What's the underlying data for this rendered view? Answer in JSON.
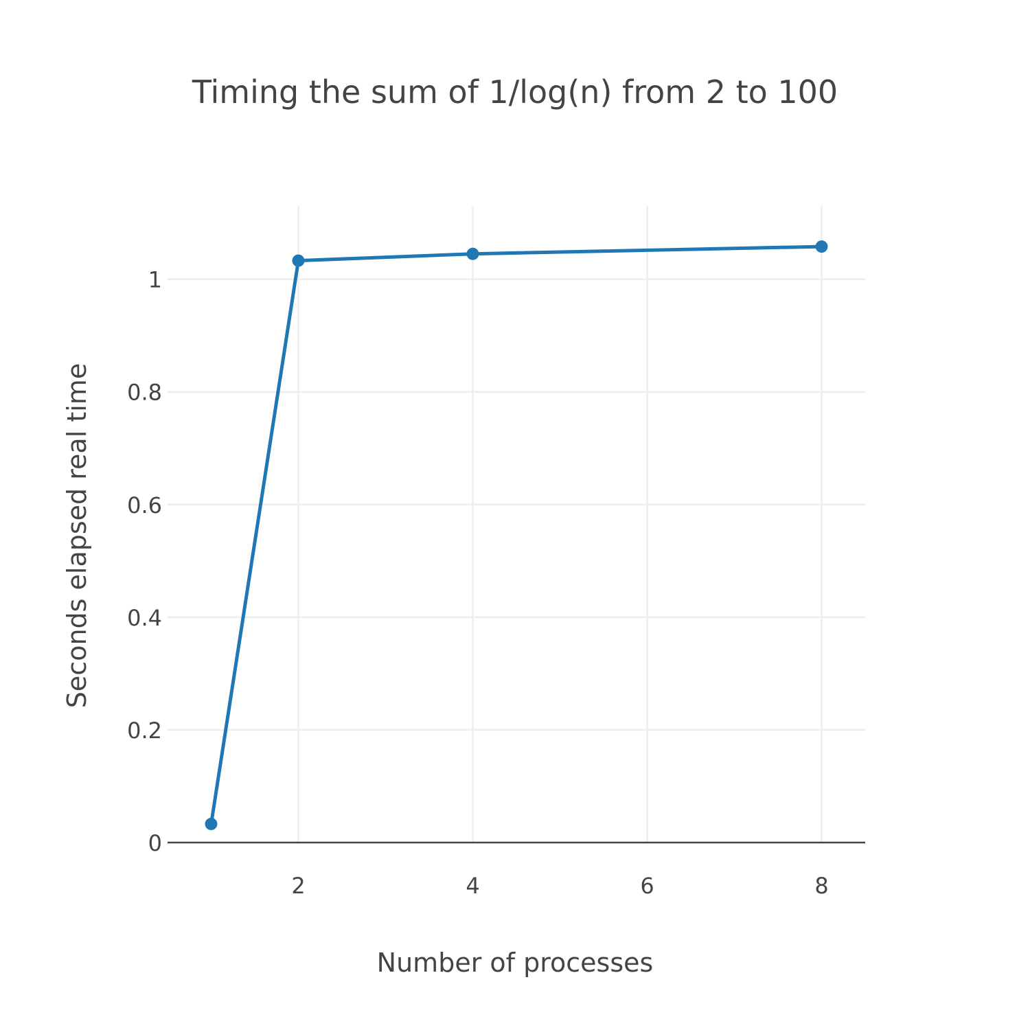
{
  "chart_data": {
    "type": "line",
    "title": "Timing the sum of 1/log(n) from 2 to 100",
    "xlabel": "Number of processes",
    "ylabel": "Seconds elapsed real time",
    "x": [
      1,
      2,
      4,
      8
    ],
    "series": [
      {
        "values": [
          0.033,
          1.033,
          1.045,
          1.058
        ],
        "color": "#1f77b4"
      }
    ],
    "xlim": [
      0.5,
      8.5
    ],
    "ylim": [
      0,
      1.13
    ],
    "xticks": [
      2,
      4,
      6,
      8
    ],
    "xtick_labels": [
      "2",
      "4",
      "6",
      "8"
    ],
    "yticks": [
      0,
      0.2,
      0.4,
      0.6,
      0.8,
      1
    ],
    "ytick_labels": [
      "0",
      "0.2",
      "0.4",
      "0.6",
      "0.8",
      "1"
    ],
    "grid": true,
    "markers": true,
    "legend": "none",
    "colors": {
      "series": "#1f77b4",
      "grid": "#eeeeee",
      "zero_line": "#444444",
      "text": "#444444"
    }
  }
}
